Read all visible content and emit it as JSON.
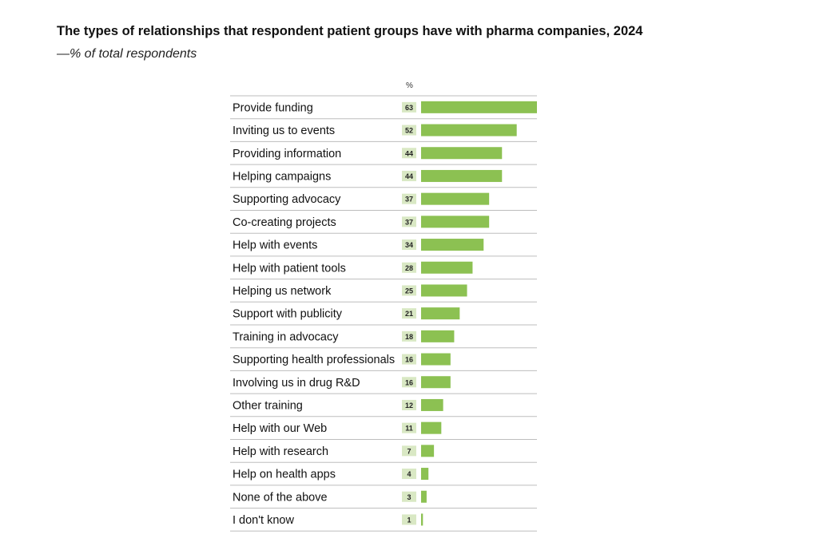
{
  "title": "The types of relationships that respondent patient groups have with pharma companies, 2024",
  "subtitle": "—% of total respondents",
  "colors": {
    "bar": "#8cc152",
    "value_bg": "#d9e8c4",
    "row_line": "#bdbdbd",
    "text": "#111111"
  },
  "chart_data": {
    "type": "bar",
    "orientation": "horizontal",
    "title": "The types of relationships that respondent patient groups have with pharma companies, 2024",
    "subtitle": "—% of total respondents",
    "unit_label": "%",
    "categories": [
      "Provide funding",
      "Inviting us to events",
      "Providing information",
      "Helping campaigns",
      "Supporting advocacy",
      "Co-creating projects",
      "Help with events",
      "Help with patient tools",
      "Helping us network",
      "Support with publicity",
      "Training in advocacy",
      "Supporting health professionals",
      "Involving us in drug R&D",
      "Other training",
      "Help with our Web",
      "Help with research",
      "Help on health apps",
      "None of the above",
      "I don't know"
    ],
    "values": [
      63,
      52,
      44,
      44,
      37,
      37,
      34,
      28,
      25,
      21,
      18,
      16,
      16,
      12,
      11,
      7,
      4,
      3,
      1
    ],
    "xlim": [
      0,
      63
    ],
    "grid": false,
    "legend": "none"
  }
}
